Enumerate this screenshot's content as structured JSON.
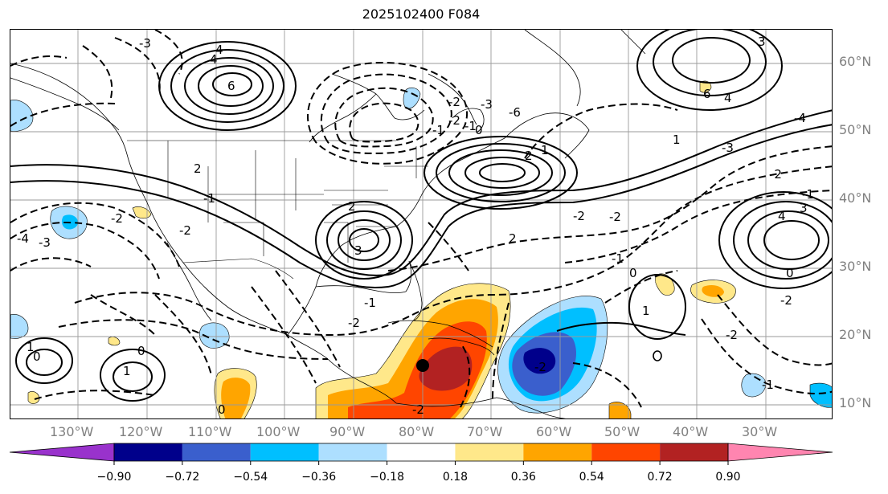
{
  "title": "2025102400 F084",
  "lon_labels": [
    "130°W",
    "120°W",
    "110°W",
    "100°W",
    "90°W",
    "80°W",
    "70°W",
    "60°W",
    "50°W",
    "40°W",
    "30°W"
  ],
  "lat_labels": [
    "60°N",
    "50°N",
    "40°N",
    "30°N",
    "20°N",
    "10°N"
  ],
  "colorbar": {
    "ticks": [
      "−0.90",
      "−0.72",
      "−0.54",
      "−0.36",
      "−0.18",
      "0.18",
      "0.36",
      "0.54",
      "0.72",
      "0.90"
    ],
    "colors": [
      "#9932CC",
      "#00008B",
      "#3A5FCD",
      "#00BFFF",
      "#ADDFFF",
      "#FFFFFF",
      "#FFE88A",
      "#FFA500",
      "#FF4500",
      "#B22222",
      "#FF85B0"
    ]
  },
  "contour_labels": [
    "-3",
    "4",
    "6",
    "-1",
    "-2",
    "-3",
    "-6",
    "2",
    "-2",
    "-1",
    "0",
    "-4",
    "-3",
    "1",
    "3",
    "6",
    "4",
    "-4",
    "-2",
    "2",
    "1",
    "2",
    "3",
    "4",
    "3",
    "-2",
    "-1",
    "0",
    "-2",
    "-1",
    "-2",
    "1",
    "-1",
    "-2",
    "2",
    "-2",
    "-1",
    "0",
    "1",
    "0",
    "-2",
    "-1",
    "1",
    "0",
    "-2",
    "-2",
    "0",
    "-2",
    "-3",
    "4"
  ],
  "marker": "storm-center-dot"
}
